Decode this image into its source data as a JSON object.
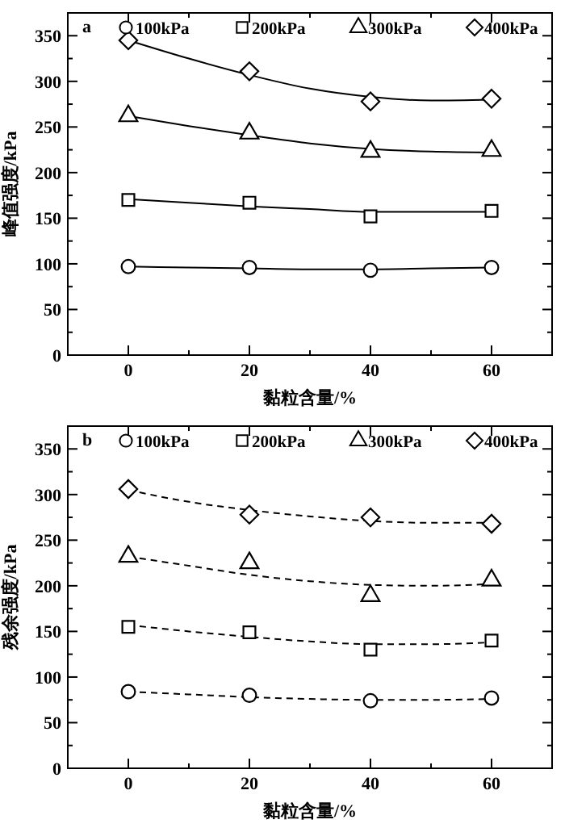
{
  "chart_data": [
    {
      "type": "scatter",
      "xlabel": "黏粒含量/%",
      "ylabel": "峰值强度/kPa",
      "annotations": [
        "a"
      ],
      "xlim": [
        -10,
        70
      ],
      "ylim": [
        0,
        375
      ],
      "xticks": [
        0,
        {
          "value": 10,
          "label": null
        },
        20,
        {
          "value": 30,
          "label": null
        },
        40,
        {
          "value": 50,
          "label": null
        },
        60
      ],
      "yticks": [
        0,
        {
          "value": 25,
          "label": null
        },
        50,
        {
          "value": 75,
          "label": null
        },
        100,
        {
          "value": 125,
          "label": null
        },
        150,
        {
          "value": 175,
          "label": null
        },
        200,
        {
          "value": 225,
          "label": null
        },
        250,
        {
          "value": 275,
          "label": null
        },
        300,
        {
          "value": 325,
          "label": null
        },
        350
      ],
      "legend": "top",
      "grid": false,
      "x": [
        0,
        20,
        40,
        60
      ],
      "series": [
        {
          "name": "100kPa",
          "color": "#000000",
          "marker": "circle",
          "values": [
            97,
            96,
            93,
            96
          ]
        },
        {
          "name": "200kPa",
          "color": "#000000",
          "marker": "square",
          "values": [
            170,
            167,
            152,
            158
          ]
        },
        {
          "name": "300kPa",
          "color": "#000000",
          "marker": "triangle",
          "values": [
            262,
            243,
            223,
            224
          ]
        },
        {
          "name": "400kPa",
          "color": "#000000",
          "marker": "diamond",
          "values": [
            345,
            311,
            278,
            281
          ]
        },
        {
          "type": "line",
          "color": "#000000",
          "line_style": "solid",
          "x": [
            0,
            10,
            20,
            30,
            40,
            50,
            60
          ],
          "values": [
            97,
            96,
            95,
            94,
            94,
            95,
            96
          ]
        },
        {
          "type": "line",
          "color": "#000000",
          "line_style": "solid",
          "x": [
            0,
            10,
            20,
            30,
            40,
            50,
            60
          ],
          "values": [
            171,
            167,
            163,
            160,
            157,
            157,
            157
          ]
        },
        {
          "type": "line",
          "color": "#000000",
          "line_style": "solid",
          "x": [
            0,
            10,
            20,
            30,
            40,
            50,
            60
          ],
          "values": [
            262,
            251,
            241,
            232,
            226,
            223,
            222
          ]
        },
        {
          "type": "line",
          "color": "#000000",
          "line_style": "solid",
          "x": [
            0,
            10,
            20,
            30,
            40,
            50,
            60
          ],
          "values": [
            345,
            325,
            307,
            292,
            283,
            279,
            280
          ]
        }
      ]
    },
    {
      "type": "scatter",
      "xlabel": "黏粒含量/%",
      "ylabel": "残余强度/kPa",
      "annotations": [
        "b"
      ],
      "xlim": [
        -10,
        70
      ],
      "ylim": [
        0,
        375
      ],
      "xticks": [
        0,
        {
          "value": 10,
          "label": null
        },
        20,
        {
          "value": 30,
          "label": null
        },
        40,
        {
          "value": 50,
          "label": null
        },
        60
      ],
      "yticks": [
        0,
        {
          "value": 25,
          "label": null
        },
        50,
        {
          "value": 75,
          "label": null
        },
        100,
        {
          "value": 125,
          "label": null
        },
        150,
        {
          "value": 175,
          "label": null
        },
        200,
        {
          "value": 225,
          "label": null
        },
        250,
        {
          "value": 275,
          "label": null
        },
        300,
        {
          "value": 325,
          "label": null
        },
        350
      ],
      "legend": "top",
      "grid": false,
      "x": [
        0,
        20,
        40,
        60
      ],
      "series": [
        {
          "name": "100kPa",
          "color": "#000000",
          "marker": "circle",
          "values": [
            84,
            80,
            74,
            77
          ]
        },
        {
          "name": "200kPa",
          "color": "#000000",
          "marker": "square",
          "values": [
            155,
            149,
            130,
            140
          ]
        },
        {
          "name": "300kPa",
          "color": "#000000",
          "marker": "triangle",
          "values": [
            232,
            225,
            189,
            206
          ]
        },
        {
          "name": "400kPa",
          "color": "#000000",
          "marker": "diamond",
          "values": [
            306,
            278,
            275,
            268
          ]
        },
        {
          "type": "line",
          "color": "#000000",
          "line_style": "dashed",
          "x": [
            0,
            10,
            20,
            30,
            40,
            50,
            60
          ],
          "values": [
            84,
            81,
            78,
            76,
            75,
            75,
            76
          ]
        },
        {
          "type": "line",
          "color": "#000000",
          "line_style": "dashed",
          "x": [
            0,
            10,
            20,
            30,
            40,
            50,
            60
          ],
          "values": [
            157,
            150,
            144,
            139,
            136,
            136,
            138
          ]
        },
        {
          "type": "line",
          "color": "#000000",
          "line_style": "dashed",
          "x": [
            0,
            10,
            20,
            30,
            40,
            50,
            60
          ],
          "values": [
            232,
            222,
            212,
            205,
            201,
            200,
            202
          ]
        },
        {
          "type": "line",
          "color": "#000000",
          "line_style": "dashed",
          "x": [
            0,
            10,
            20,
            30,
            40,
            50,
            60
          ],
          "values": [
            305,
            292,
            283,
            276,
            271,
            269,
            269
          ]
        }
      ]
    }
  ]
}
